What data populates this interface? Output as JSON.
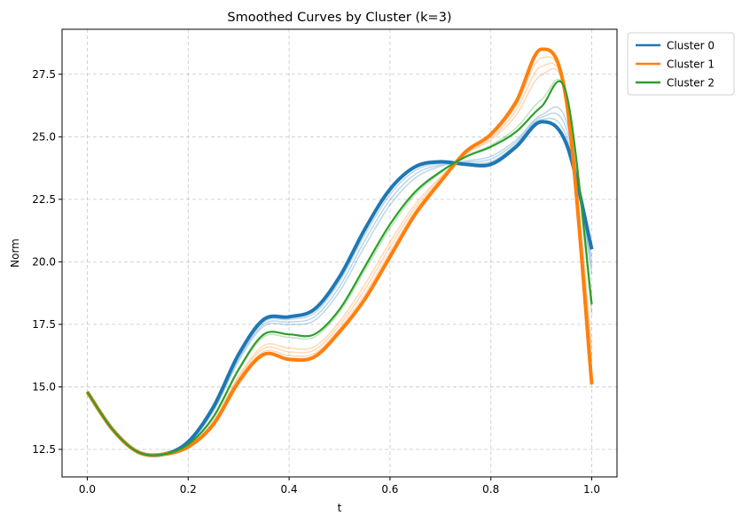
{
  "chart_data": {
    "type": "line",
    "title": "Smoothed Curves by Cluster (k=3)",
    "xlabel": "t",
    "ylabel": "Norm",
    "xlim": [
      -0.05,
      1.05
    ],
    "ylim": [
      11.4,
      29.3
    ],
    "xticks": [
      0.0,
      0.2,
      0.4,
      0.6,
      0.8,
      1.0
    ],
    "xtick_labels": [
      "0.0",
      "0.2",
      "0.4",
      "0.6",
      "0.8",
      "1.0"
    ],
    "yticks": [
      12.5,
      15.0,
      17.5,
      20.0,
      22.5,
      25.0,
      27.5
    ],
    "ytick_labels": [
      "12.5",
      "15.0",
      "17.5",
      "20.0",
      "22.5",
      "25.0",
      "27.5"
    ],
    "grid": true,
    "legend_position": "outside-top-right",
    "series": [
      {
        "name": "Cluster 0",
        "color": "#1f77b4",
        "x": [
          0.0,
          0.05,
          0.1,
          0.15,
          0.2,
          0.25,
          0.3,
          0.35,
          0.4,
          0.45,
          0.5,
          0.55,
          0.6,
          0.65,
          0.7,
          0.75,
          0.8,
          0.85,
          0.9,
          0.95,
          1.0
        ],
        "y": [
          14.8,
          13.3,
          12.4,
          12.3,
          12.8,
          14.2,
          16.3,
          17.7,
          17.8,
          18.1,
          19.4,
          21.3,
          22.9,
          23.8,
          24.0,
          23.9,
          23.9,
          24.6,
          25.6,
          24.7,
          20.5
        ]
      },
      {
        "name": "Cluster 1",
        "color": "#ff7f0e",
        "x": [
          0.0,
          0.05,
          0.1,
          0.15,
          0.2,
          0.25,
          0.3,
          0.35,
          0.4,
          0.45,
          0.5,
          0.55,
          0.6,
          0.65,
          0.7,
          0.75,
          0.8,
          0.85,
          0.9,
          0.95,
          1.0
        ],
        "y": [
          14.8,
          13.3,
          12.4,
          12.3,
          12.6,
          13.5,
          15.2,
          16.3,
          16.1,
          16.2,
          17.2,
          18.5,
          20.2,
          21.9,
          23.2,
          24.4,
          25.1,
          26.4,
          28.5,
          26.4,
          15.1
        ]
      },
      {
        "name": "Cluster 2",
        "color": "#2ca02c",
        "x": [
          0.0,
          0.05,
          0.1,
          0.15,
          0.2,
          0.25,
          0.3,
          0.35,
          0.4,
          0.45,
          0.5,
          0.55,
          0.6,
          0.65,
          0.7,
          0.75,
          0.8,
          0.85,
          0.9,
          0.95,
          1.0
        ],
        "y": [
          14.8,
          13.3,
          12.4,
          12.3,
          12.7,
          13.8,
          15.7,
          17.1,
          17.1,
          17.1,
          18.1,
          19.8,
          21.5,
          22.8,
          23.6,
          24.2,
          24.6,
          25.2,
          26.2,
          26.7,
          18.3
        ]
      }
    ]
  }
}
